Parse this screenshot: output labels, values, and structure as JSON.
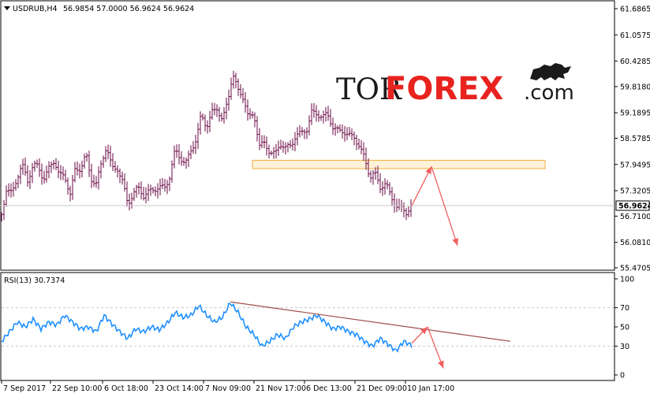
{
  "header": {
    "symbol": "USDRUB,H4",
    "ohlc": "56.9854 57.0000 56.9624 56.9624"
  },
  "watermark": {
    "part1": "TOR",
    "part2": "FOREX",
    "part3": ".com",
    "icon": "bull-icon"
  },
  "colors": {
    "background": "#ffffff",
    "bar": "#6a0a44",
    "rsi_line": "#1e90ff",
    "trendline": "#a0504a",
    "arrow": "#f06060",
    "zone_fill": "#fff2d8",
    "zone_stroke": "#f0b040",
    "grid": "#c8c8c8"
  },
  "chart_data": [
    {
      "type": "ohlc",
      "title": "USDRUB,H4",
      "price_ticks": [
        "61.6865",
        "61.0575",
        "60.4285",
        "59.8180",
        "59.1895",
        "58.5785",
        "57.9495",
        "57.3205",
        "56.7100",
        "56.0810",
        "55.4705"
      ],
      "ylim": [
        55.4705,
        61.6865
      ],
      "current_price": "56.9624",
      "time_ticks": [
        "7 Sep 2017",
        "22 Sep 10:00",
        "6 Oct 18:00",
        "23 Oct 14:00",
        "7 Nov 09:00",
        "21 Nov 17:00",
        "6 Dec 13:00",
        "21 Dec 09:00",
        "10 Jan 17:00"
      ],
      "close_anchors": [
        [
          0,
          56.75
        ],
        [
          6,
          57.35
        ],
        [
          13,
          57.25
        ],
        [
          20,
          57.65
        ],
        [
          26,
          57.95
        ],
        [
          33,
          57.55
        ],
        [
          40,
          57.95
        ],
        [
          46,
          57.9
        ],
        [
          53,
          57.6
        ],
        [
          60,
          57.85
        ],
        [
          67,
          58.05
        ],
        [
          73,
          57.7
        ],
        [
          80,
          57.65
        ],
        [
          87,
          57.25
        ],
        [
          93,
          57.8
        ],
        [
          100,
          57.85
        ],
        [
          107,
          58.2
        ],
        [
          113,
          57.6
        ],
        [
          120,
          57.5
        ],
        [
          127,
          58.0
        ],
        [
          133,
          58.4
        ],
        [
          140,
          57.85
        ],
        [
          147,
          57.85
        ],
        [
          153,
          57.55
        ],
        [
          160,
          57.0
        ],
        [
          167,
          57.25
        ],
        [
          173,
          57.4
        ],
        [
          180,
          57.2
        ],
        [
          187,
          57.3
        ],
        [
          193,
          57.35
        ],
        [
          200,
          57.4
        ],
        [
          207,
          57.4
        ],
        [
          213,
          57.65
        ],
        [
          220,
          58.3
        ],
        [
          227,
          58.1
        ],
        [
          233,
          57.95
        ],
        [
          240,
          58.3
        ],
        [
          247,
          58.55
        ],
        [
          253,
          59.15
        ],
        [
          260,
          58.85
        ],
        [
          267,
          59.2
        ],
        [
          273,
          59.3
        ],
        [
          280,
          59.0
        ],
        [
          287,
          59.5
        ],
        [
          293,
          60.15
        ],
        [
          300,
          59.7
        ],
        [
          307,
          59.55
        ],
        [
          313,
          59.05
        ],
        [
          320,
          59.15
        ],
        [
          327,
          58.4
        ],
        [
          333,
          58.45
        ],
        [
          340,
          58.25
        ],
        [
          347,
          58.2
        ],
        [
          353,
          58.45
        ],
        [
          360,
          58.35
        ],
        [
          367,
          58.4
        ],
        [
          373,
          58.65
        ],
        [
          380,
          58.7
        ],
        [
          387,
          58.8
        ],
        [
          393,
          59.2
        ],
        [
          400,
          59.15
        ],
        [
          407,
          59.1
        ],
        [
          413,
          59.15
        ],
        [
          420,
          58.85
        ],
        [
          427,
          58.75
        ],
        [
          433,
          58.75
        ],
        [
          440,
          58.65
        ],
        [
          447,
          58.6
        ],
        [
          453,
          58.4
        ],
        [
          460,
          58.1
        ],
        [
          467,
          57.65
        ],
        [
          473,
          57.75
        ],
        [
          480,
          57.4
        ],
        [
          487,
          57.5
        ],
        [
          493,
          57.2
        ],
        [
          500,
          56.95
        ],
        [
          507,
          56.9
        ],
        [
          513,
          56.8
        ],
        [
          520,
          56.96
        ]
      ],
      "resistance_zone": [
        57.85,
        58.05
      ],
      "forecast": [
        [
          520,
          56.96
        ],
        [
          545,
          57.9
        ],
        [
          578,
          56.0
        ]
      ]
    },
    {
      "type": "line",
      "title": "RSI(13) 30.7374",
      "ylim": [
        0,
        100
      ],
      "rsi_ticks": [
        "100",
        "70",
        "50",
        "30",
        "0"
      ],
      "levels": [
        70,
        30
      ],
      "rsi_anchors": [
        [
          0,
          35
        ],
        [
          10,
          45
        ],
        [
          20,
          55
        ],
        [
          30,
          50
        ],
        [
          40,
          58
        ],
        [
          50,
          48
        ],
        [
          60,
          55
        ],
        [
          70,
          52
        ],
        [
          80,
          62
        ],
        [
          90,
          55
        ],
        [
          100,
          48
        ],
        [
          110,
          50
        ],
        [
          120,
          45
        ],
        [
          130,
          62
        ],
        [
          140,
          53
        ],
        [
          150,
          45
        ],
        [
          160,
          38
        ],
        [
          170,
          48
        ],
        [
          180,
          45
        ],
        [
          190,
          50
        ],
        [
          200,
          47
        ],
        [
          210,
          54
        ],
        [
          220,
          65
        ],
        [
          230,
          60
        ],
        [
          240,
          62
        ],
        [
          250,
          72
        ],
        [
          260,
          62
        ],
        [
          270,
          55
        ],
        [
          280,
          60
        ],
        [
          290,
          75
        ],
        [
          300,
          65
        ],
        [
          310,
          50
        ],
        [
          320,
          42
        ],
        [
          330,
          30
        ],
        [
          340,
          35
        ],
        [
          350,
          42
        ],
        [
          360,
          38
        ],
        [
          370,
          50
        ],
        [
          380,
          55
        ],
        [
          390,
          58
        ],
        [
          400,
          62
        ],
        [
          410,
          55
        ],
        [
          420,
          48
        ],
        [
          430,
          50
        ],
        [
          440,
          45
        ],
        [
          450,
          42
        ],
        [
          460,
          35
        ],
        [
          470,
          30
        ],
        [
          480,
          38
        ],
        [
          490,
          32
        ],
        [
          500,
          25
        ],
        [
          510,
          35
        ],
        [
          520,
          30.74
        ]
      ],
      "trendline": [
        [
          290,
          76
        ],
        [
          645,
          35
        ]
      ],
      "forecast": [
        [
          520,
          33
        ],
        [
          540,
          50
        ],
        [
          560,
          7
        ]
      ]
    }
  ]
}
